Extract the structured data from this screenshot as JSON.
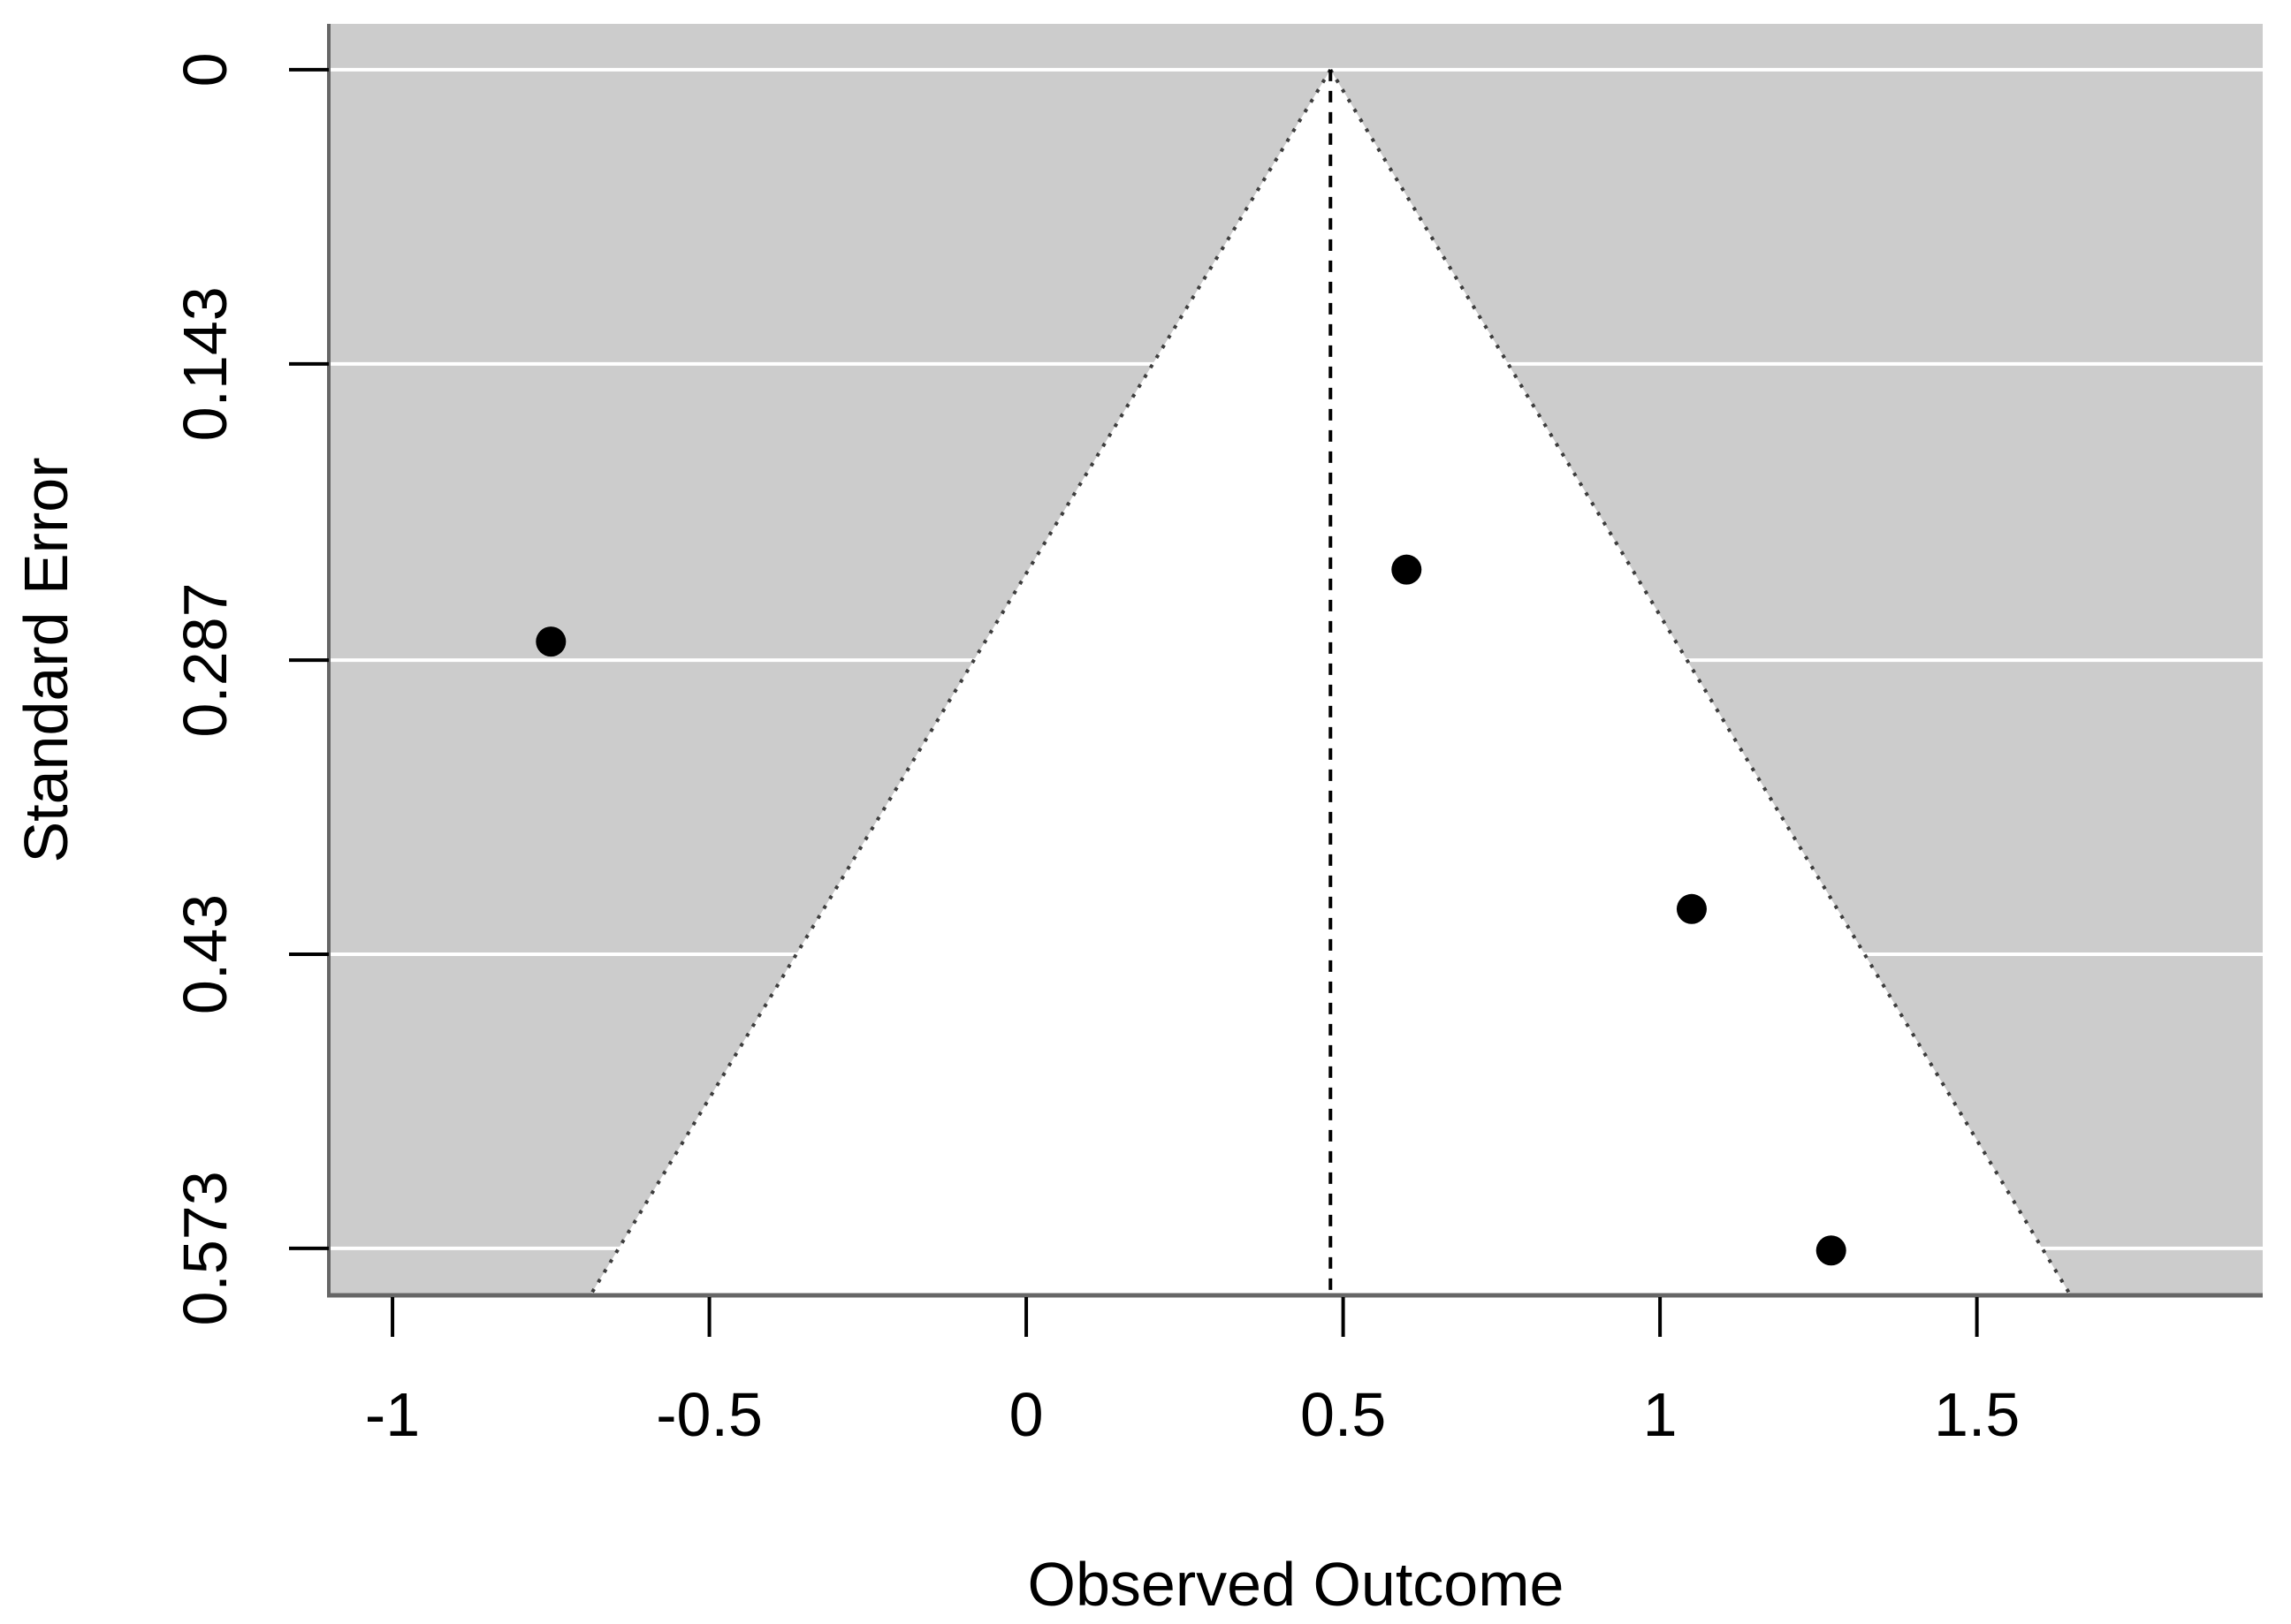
{
  "chart_data": {
    "type": "scatter",
    "subtype": "funnel-plot",
    "title": "",
    "xlabel": "Observed Outcome",
    "ylabel": "Standard Error",
    "x_range": [
      -1.1005,
      1.951
    ],
    "se_range_top_to_bottom": [
      -0.0223,
      0.5958
    ],
    "y_axis_reversed": true,
    "grid": true,
    "legend": "none",
    "x_ticks": [
      {
        "value": -1,
        "label": "-1"
      },
      {
        "value": -0.5,
        "label": "-0.5"
      },
      {
        "value": 0,
        "label": "0"
      },
      {
        "value": 0.5,
        "label": "0.5"
      },
      {
        "value": 1,
        "label": "1"
      },
      {
        "value": 1.5,
        "label": "1.5"
      }
    ],
    "y_ticks": [
      {
        "value": 0,
        "label": "0"
      },
      {
        "value": 0.143,
        "label": "0.143"
      },
      {
        "value": 0.287,
        "label": "0.287"
      },
      {
        "value": 0.43,
        "label": "0.43"
      },
      {
        "value": 0.573,
        "label": "0.573"
      }
    ],
    "points": [
      {
        "x": -0.75,
        "se": 0.278
      },
      {
        "x": 0.6,
        "se": 0.243
      },
      {
        "x": 1.05,
        "se": 0.408
      },
      {
        "x": 1.27,
        "se": 0.574
      }
    ],
    "funnel": {
      "center_estimate": 0.48,
      "apex_se": 0,
      "ci_multiplier": 1.96,
      "reference_line": "dashed-vertical"
    },
    "colors": {
      "shaded_background": "#cccccc",
      "funnel_region_fill": "#ffffff",
      "gridline": "#ffffff",
      "funnel_border": "#3d3d3d",
      "reference_line": "#000000",
      "axis_box": "#666666",
      "tick": "#000000",
      "point_fill": "#000000",
      "text": "#000000",
      "page_background": "#ffffff"
    }
  }
}
